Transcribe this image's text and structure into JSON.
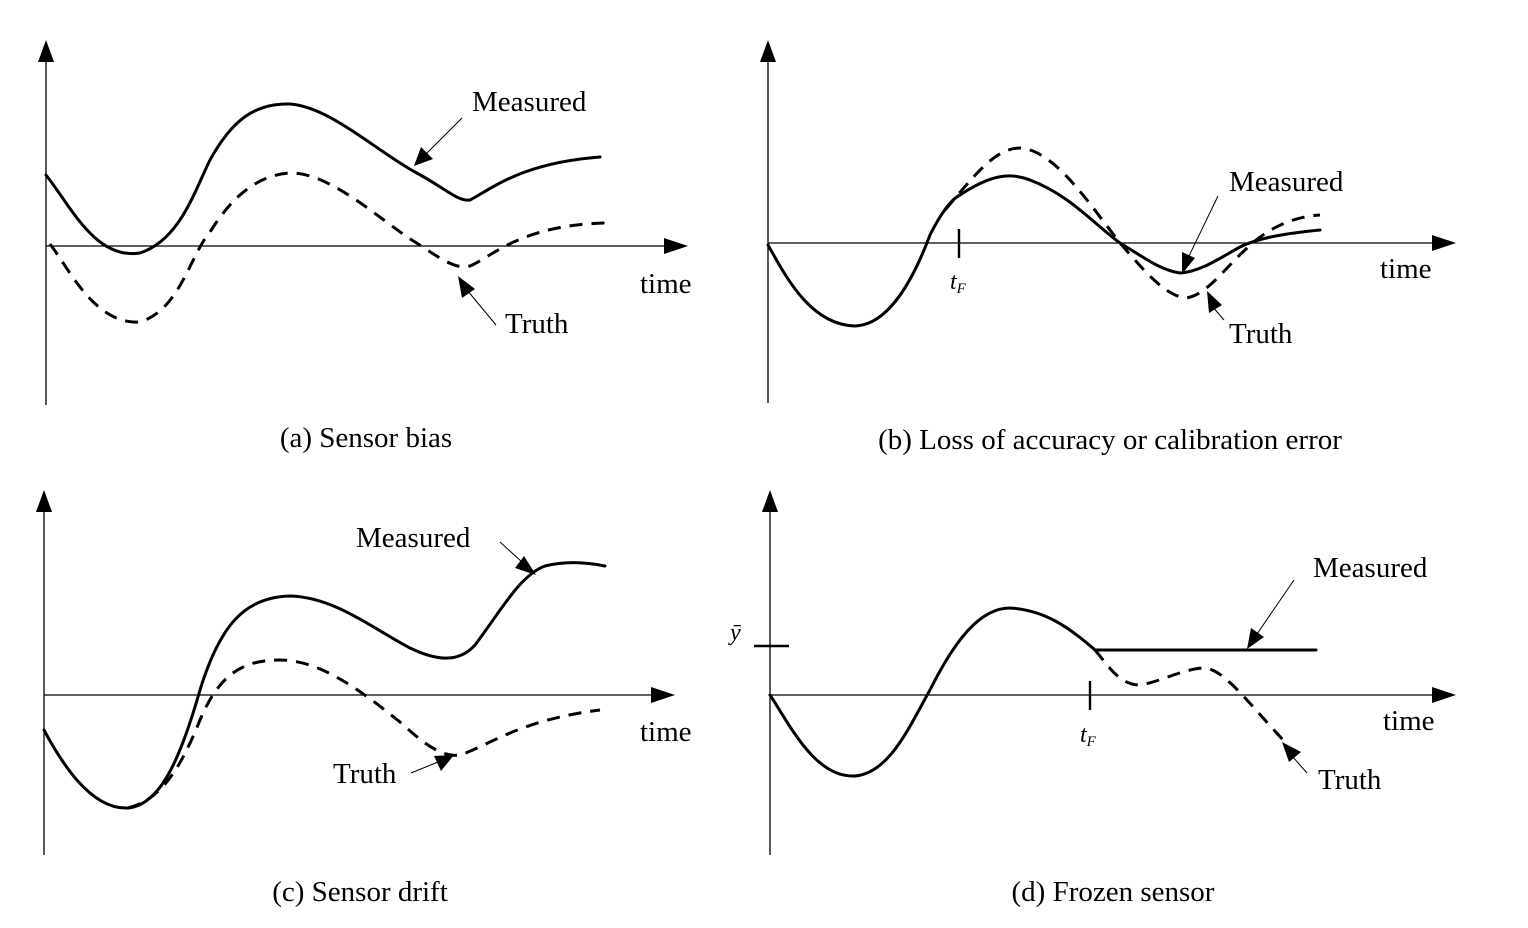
{
  "panels": {
    "a": {
      "caption": "(a) Sensor bias",
      "xlabel": "time",
      "measured_label": "Measured",
      "truth_label": "Truth"
    },
    "b": {
      "caption": "(b) Loss of accuracy or calibration error",
      "xlabel": "time",
      "measured_label": "Measured",
      "truth_label": "Truth",
      "fault_time_label": "t",
      "fault_time_subscript": "F"
    },
    "c": {
      "caption": "(c) Sensor drift",
      "xlabel": "time",
      "measured_label": "Measured",
      "truth_label": "Truth"
    },
    "d": {
      "caption": "(d) Frozen sensor",
      "xlabel": "time",
      "measured_label": "Measured",
      "truth_label": "Truth",
      "fault_time_label": "t",
      "fault_time_subscript": "F",
      "frozen_value_label": "ȳ"
    }
  }
}
